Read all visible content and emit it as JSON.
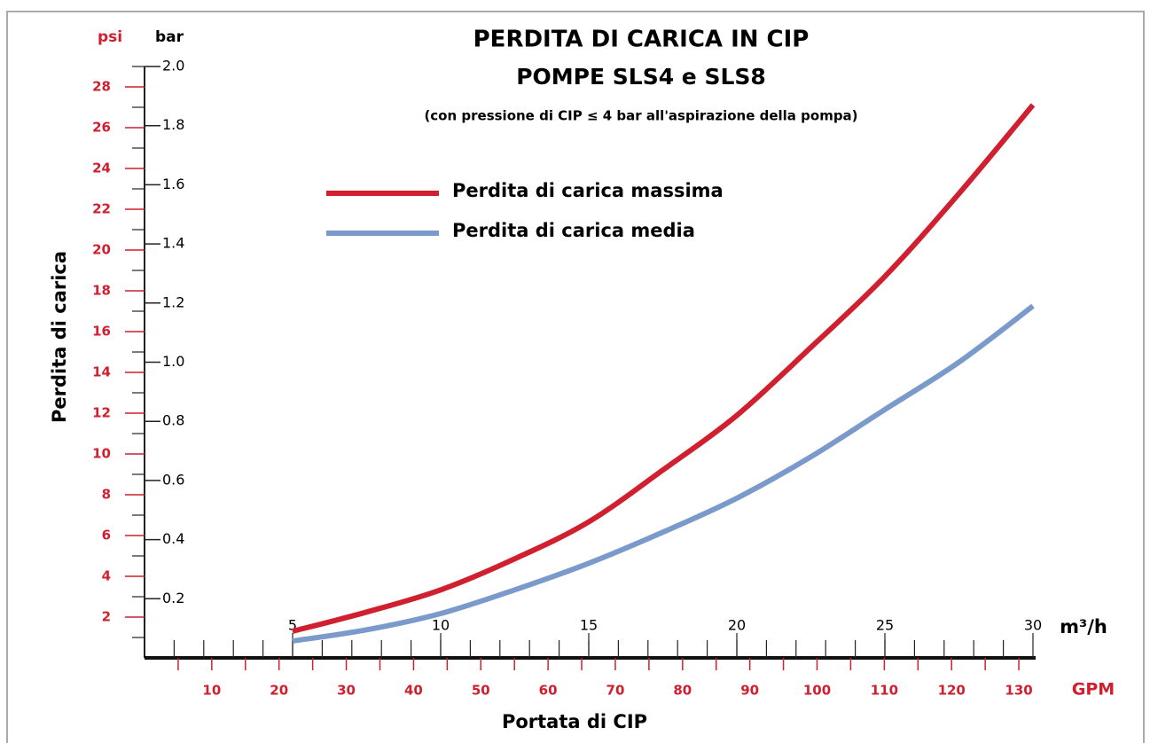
{
  "chart_data": {
    "type": "line",
    "title": "PERDITA DI CARICA IN CIP",
    "subtitle": "POMPE SLS4 e SLS8",
    "note": "(con pressione di CIP ≤ 4 bar all'aspirazione della pompa)",
    "y_label": "Perdita di carica",
    "x_label": "Portata di CIP",
    "y_unit": "bar",
    "y2_unit": "psi",
    "x_unit": "m³/h",
    "x2_unit": "GPM",
    "x": [
      5,
      7.5,
      10,
      12.5,
      15,
      17.5,
      20,
      22.5,
      25,
      27.5,
      30
    ],
    "series": [
      {
        "name": "Perdita di carica massima",
        "color": "#d01f2e",
        "values": [
          0.09,
          0.155,
          0.23,
          0.335,
          0.46,
          0.635,
          0.82,
          1.05,
          1.29,
          1.57,
          1.87
        ]
      },
      {
        "name": "Perdita di carica media",
        "color": "#7b9acc",
        "values": [
          0.057,
          0.095,
          0.15,
          0.23,
          0.32,
          0.425,
          0.54,
          0.68,
          0.84,
          1.0,
          1.19
        ]
      }
    ],
    "xlim": [
      0,
      30
    ],
    "xticks": [
      5,
      10,
      15,
      20,
      25,
      30
    ],
    "xminorticks": [
      1,
      2,
      3,
      4,
      5,
      6,
      7,
      8,
      9,
      10,
      11,
      12,
      13,
      14,
      15,
      16,
      17,
      18,
      19,
      20,
      21,
      22,
      23,
      24,
      25,
      26,
      27,
      28,
      29
    ],
    "x2lim": [
      0,
      132.1
    ],
    "x2ticks": [
      10,
      20,
      30,
      40,
      50,
      60,
      70,
      80,
      90,
      100,
      110,
      120,
      130
    ],
    "x2minorticks": [
      5,
      15,
      25,
      35,
      45,
      55,
      65,
      75,
      85,
      95,
      105,
      115,
      125
    ],
    "ylim": [
      0,
      2
    ],
    "yticks": [
      0.2,
      0.4,
      0.6,
      0.8,
      {
        "value": 1,
        "label": "1.0"
      },
      1.2,
      1.4,
      1.6,
      1.8,
      {
        "value": 2,
        "label": "2.0"
      }
    ],
    "y2lim": [
      0,
      29
    ],
    "y2ticks": [
      2,
      4,
      6,
      8,
      10,
      12,
      14,
      16,
      18,
      20,
      22,
      24,
      26,
      28
    ],
    "y2minorticks": [
      1,
      3,
      5,
      7,
      9,
      11,
      13,
      15,
      17,
      19,
      21,
      23,
      25,
      27,
      29
    ],
    "y2_color": "#d01f2e",
    "x2_color": "#d01f2e"
  }
}
